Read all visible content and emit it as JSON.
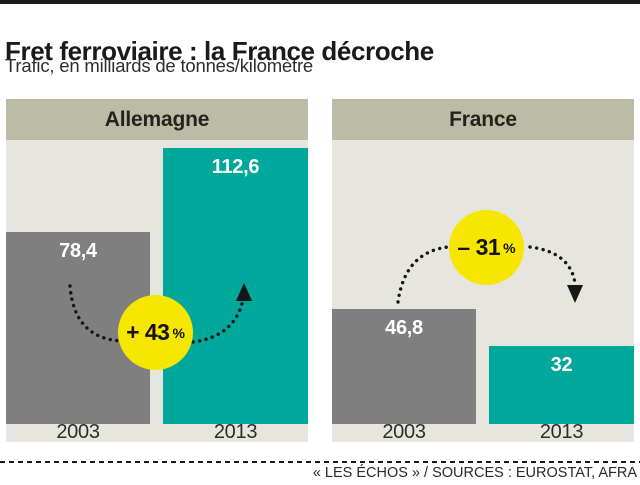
{
  "title": "Fret ferroviaire : la France décroche",
  "subtitle": "Trafic, en milliards de tonnes/kilomètre",
  "credit": "« LES ÉCHOS » / SOURCES : EUROSTAT, AFRA",
  "colors": {
    "bar_2003": "#7f7f7f",
    "bar_2013": "#00a79b",
    "panel_background": "#e6e6de",
    "header_band": "#bcbca6",
    "badge_yellow": "#f7e700",
    "value_text": "#ffffff",
    "ink": "#1a1a1a"
  },
  "chart_data": {
    "type": "bar",
    "title": "Fret ferroviaire : la France décroche",
    "subtitle": "Trafic, en milliards de tonnes/kilomètre",
    "unit": "milliards de tonnes/kilomètre",
    "categories": [
      "2003",
      "2013"
    ],
    "ylim": [
      0,
      112.6
    ],
    "grid": false,
    "legend": false,
    "panels": [
      {
        "name": "Allemagne",
        "values": [
          78.4,
          112.6
        ],
        "value_labels": [
          "78,4",
          "112,6"
        ],
        "change": {
          "main": "+ 43",
          "suffix": "%",
          "pct": 43,
          "direction": "up"
        }
      },
      {
        "name": "France",
        "values": [
          46.8,
          32
        ],
        "value_labels": [
          "46,8",
          "32"
        ],
        "change": {
          "main": "– 31",
          "suffix": "%",
          "pct": -31,
          "direction": "down"
        }
      }
    ]
  }
}
